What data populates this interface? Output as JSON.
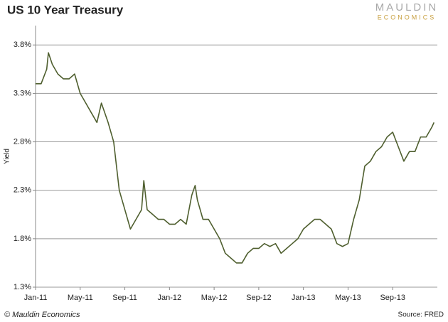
{
  "chart_data": {
    "type": "line",
    "title": "US 10 Year Treasury",
    "logo": {
      "top": "MAULDIN",
      "bottom": "ECONOMICS"
    },
    "ylabel": "Yield",
    "footer": "© Mauldin Economics",
    "source": "Source: FRED",
    "x": [
      0,
      0.5,
      1,
      1.15,
      1.5,
      2,
      2.5,
      3,
      3.5,
      4,
      4.5,
      5,
      5.5,
      5.9,
      6.5,
      7,
      7.5,
      8,
      8.5,
      9,
      9.5,
      9.7,
      10,
      10.5,
      11,
      11.5,
      12,
      12.5,
      13,
      13.5,
      14,
      14.3,
      14.5,
      15,
      15.5,
      16,
      16.5,
      17,
      17.5,
      18,
      18.5,
      19,
      19.5,
      20,
      20.5,
      21,
      21.5,
      22,
      22.5,
      23,
      23.5,
      24,
      24.5,
      25,
      25.5,
      26,
      26.5,
      27,
      27.5,
      28,
      28.5,
      29,
      29.5,
      30,
      30.5,
      31,
      31.5,
      32,
      32.5,
      33,
      33.5,
      34,
      34.5,
      35,
      35.5,
      35.7
    ],
    "series": [
      {
        "name": "Yield",
        "color": "#4f5f2f",
        "values": [
          3.4,
          3.4,
          3.55,
          3.72,
          3.6,
          3.5,
          3.45,
          3.45,
          3.5,
          3.3,
          3.2,
          3.1,
          3.0,
          3.2,
          3.0,
          2.8,
          2.3,
          2.1,
          1.9,
          2.0,
          2.1,
          2.4,
          2.1,
          2.05,
          2.0,
          2.0,
          1.95,
          1.95,
          2.0,
          1.95,
          2.25,
          2.35,
          2.2,
          2.0,
          2.0,
          1.9,
          1.8,
          1.65,
          1.6,
          1.55,
          1.55,
          1.65,
          1.7,
          1.7,
          1.75,
          1.72,
          1.75,
          1.65,
          1.7,
          1.75,
          1.8,
          1.9,
          1.95,
          2.0,
          2.0,
          1.95,
          1.9,
          1.75,
          1.72,
          1.75,
          2.0,
          2.2,
          2.55,
          2.6,
          2.7,
          2.75,
          2.85,
          2.9,
          2.75,
          2.6,
          2.7,
          2.7,
          2.85,
          2.85,
          2.95,
          3.0
        ]
      }
    ],
    "xlim": [
      0,
      36
    ],
    "xticks": [
      {
        "value": 0,
        "label": "Jan-11"
      },
      {
        "value": 4,
        "label": "May-11"
      },
      {
        "value": 8,
        "label": "Sep-11"
      },
      {
        "value": 12,
        "label": "Jan-12"
      },
      {
        "value": 16,
        "label": "May-12"
      },
      {
        "value": 20,
        "label": "Sep-12"
      },
      {
        "value": 24,
        "label": "Jan-13"
      },
      {
        "value": 28,
        "label": "May-13"
      },
      {
        "value": 32,
        "label": "Sep-13"
      }
    ],
    "ylim": [
      1.3,
      4.0
    ],
    "yticks": [
      {
        "value": 1.3,
        "label": "1.3%"
      },
      {
        "value": 1.8,
        "label": "1.8%"
      },
      {
        "value": 2.3,
        "label": "2.3%"
      },
      {
        "value": 2.8,
        "label": "2.8%"
      },
      {
        "value": 3.3,
        "label": "3.3%"
      },
      {
        "value": 3.8,
        "label": "3.8%"
      }
    ],
    "grid": true
  }
}
